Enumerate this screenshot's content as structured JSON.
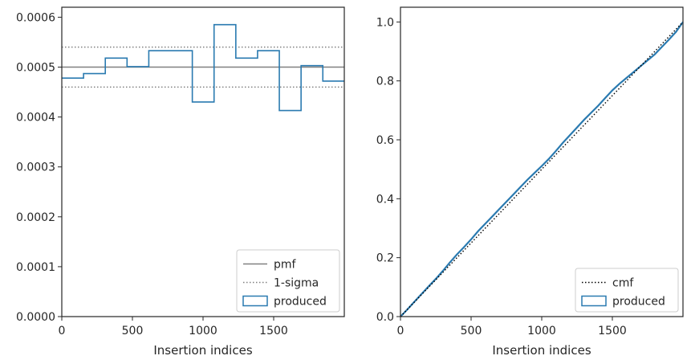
{
  "colors": {
    "histogram": "#2a7ab0",
    "pmf_line": "#808080",
    "sigma_line": "#808080",
    "cmf_line": "#000000",
    "axes": "#262626",
    "legend_border": "#cccccc"
  },
  "chart_data": [
    {
      "type": "step",
      "xlabel": "Insertion indices",
      "ylabel": "",
      "xlim": [
        0,
        2000
      ],
      "ylim": [
        0,
        0.00062
      ],
      "x_ticks": [
        0,
        500,
        1000,
        1500
      ],
      "x_tick_labels": [
        "0",
        "500",
        "1000",
        "1500"
      ],
      "y_ticks": [
        0,
        0.0001,
        0.0002,
        0.0003,
        0.0004,
        0.0005,
        0.0006
      ],
      "y_tick_labels": [
        "0.0000",
        "0.0001",
        "0.0002",
        "0.0003",
        "0.0004",
        "0.0005",
        "0.0006"
      ],
      "pmf": 0.0005,
      "sigma_upper": 0.00054,
      "sigma_lower": 0.00046,
      "bin_edges": [
        0,
        154,
        308,
        462,
        616,
        770,
        924,
        1078,
        1232,
        1386,
        1540,
        1694,
        1848,
        2000
      ],
      "bin_values": [
        0.000478,
        0.000487,
        0.000518,
        0.000501,
        0.000533,
        0.000533,
        0.00043,
        0.000585,
        0.000518,
        0.000533,
        0.000413,
        0.000503,
        0.000472
      ],
      "legend": {
        "position": "lower right",
        "entries": [
          {
            "label": "pmf",
            "style": "line-solid"
          },
          {
            "label": "1-sigma",
            "style": "line-dotted"
          },
          {
            "label": "produced",
            "style": "patch"
          }
        ]
      }
    },
    {
      "type": "line",
      "xlabel": "Insertion indices",
      "ylabel": "",
      "xlim": [
        0,
        2000
      ],
      "ylim": [
        0,
        1.05
      ],
      "x_ticks": [
        0,
        500,
        1000,
        1500
      ],
      "x_tick_labels": [
        "0",
        "500",
        "1000",
        "1500"
      ],
      "y_ticks": [
        0,
        0.2,
        0.4,
        0.6,
        0.8,
        1.0
      ],
      "y_tick_labels": [
        "0.0",
        "0.2",
        "0.4",
        "0.6",
        "0.8",
        "1.0"
      ],
      "cmf": {
        "x": [
          0,
          2000
        ],
        "y": [
          0,
          1
        ]
      },
      "produced": {
        "x": [
          0,
          50,
          100,
          150,
          200,
          250,
          300,
          350,
          400,
          450,
          500,
          550,
          600,
          650,
          700,
          750,
          800,
          850,
          900,
          950,
          1000,
          1050,
          1100,
          1150,
          1200,
          1250,
          1300,
          1350,
          1400,
          1450,
          1500,
          1550,
          1600,
          1650,
          1700,
          1750,
          1800,
          1850,
          1900,
          1950,
          2000
        ],
        "y": [
          0.0,
          0.025,
          0.051,
          0.077,
          0.103,
          0.128,
          0.155,
          0.184,
          0.211,
          0.236,
          0.262,
          0.29,
          0.315,
          0.34,
          0.365,
          0.39,
          0.415,
          0.44,
          0.465,
          0.488,
          0.511,
          0.535,
          0.562,
          0.59,
          0.616,
          0.642,
          0.668,
          0.692,
          0.716,
          0.742,
          0.768,
          0.79,
          0.81,
          0.83,
          0.85,
          0.87,
          0.89,
          0.915,
          0.94,
          0.966,
          1.0
        ]
      },
      "legend": {
        "position": "lower right",
        "entries": [
          {
            "label": "cmf",
            "style": "line-dotted"
          },
          {
            "label": "produced",
            "style": "patch"
          }
        ]
      }
    }
  ]
}
